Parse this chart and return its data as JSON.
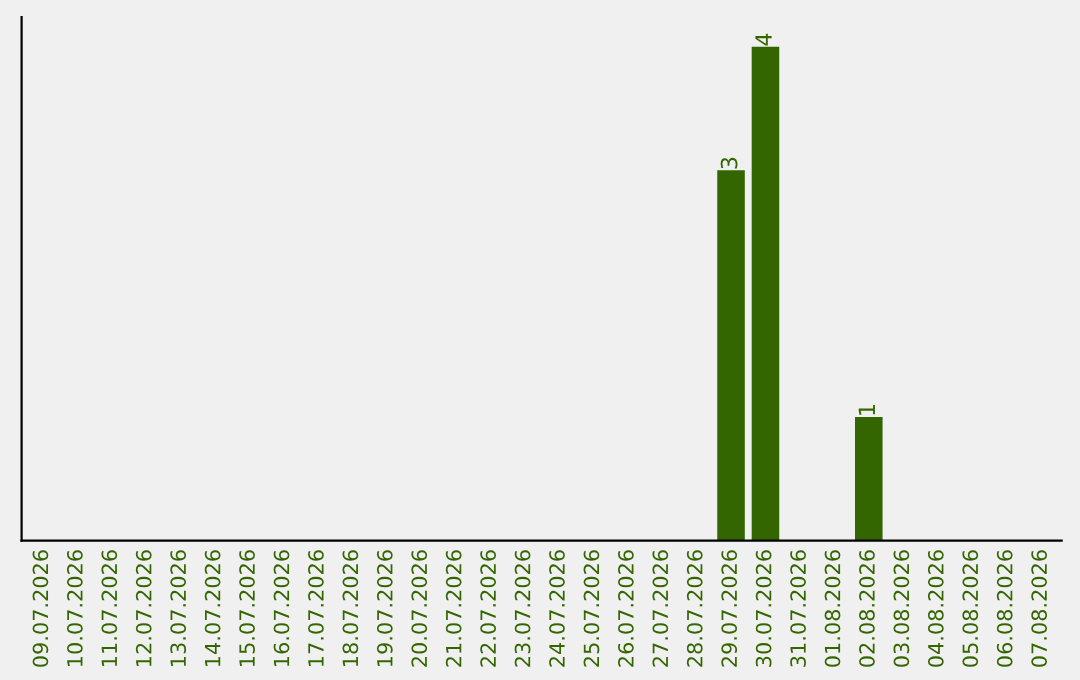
{
  "chart_data": {
    "type": "bar",
    "categories": [
      "09.07.2026",
      "10.07.2026",
      "11.07.2026",
      "12.07.2026",
      "13.07.2026",
      "14.07.2026",
      "15.07.2026",
      "16.07.2026",
      "17.07.2026",
      "18.07.2026",
      "19.07.2026",
      "20.07.2026",
      "21.07.2026",
      "22.07.2026",
      "23.07.2026",
      "24.07.2026",
      "25.07.2026",
      "26.07.2026",
      "27.07.2026",
      "28.07.2026",
      "29.07.2026",
      "30.07.2026",
      "31.07.2026",
      "01.08.2026",
      "02.08.2026",
      "03.08.2026",
      "04.08.2026",
      "05.08.2026",
      "06.08.2026",
      "07.08.2026"
    ],
    "values": [
      null,
      null,
      null,
      null,
      null,
      null,
      null,
      null,
      null,
      null,
      null,
      null,
      null,
      null,
      null,
      null,
      null,
      null,
      null,
      null,
      3,
      4,
      null,
      null,
      1,
      null,
      null,
      null,
      null,
      null
    ],
    "color": "#336600",
    "data_labels": true,
    "tick_labels": "x"
  }
}
